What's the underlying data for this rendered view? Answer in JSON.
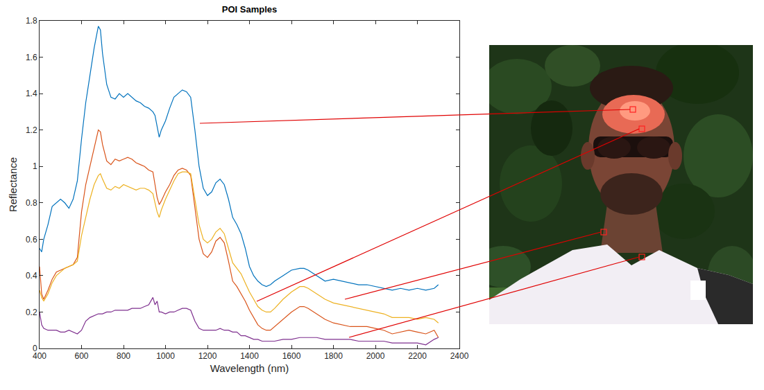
{
  "chart_data": {
    "type": "line",
    "title": "POI Samples",
    "xlabel": "Wavelength (nm)",
    "ylabel": "Reflectance",
    "xlim": [
      400,
      2400
    ],
    "xticks": [
      400,
      600,
      800,
      1000,
      1200,
      1400,
      1600,
      1800,
      2000,
      2200,
      2400
    ],
    "ylim": [
      0,
      1.8
    ],
    "yticks": [
      0,
      0.2,
      0.4,
      0.6,
      0.8,
      1,
      1.2,
      1.4,
      1.6,
      1.8
    ],
    "grid": false,
    "x": [
      400,
      410,
      420,
      440,
      460,
      480,
      500,
      520,
      540,
      560,
      580,
      600,
      620,
      640,
      660,
      680,
      690,
      700,
      720,
      740,
      760,
      780,
      800,
      820,
      840,
      860,
      880,
      900,
      920,
      940,
      950,
      960,
      970,
      980,
      1000,
      1020,
      1040,
      1060,
      1080,
      1100,
      1120,
      1140,
      1160,
      1180,
      1200,
      1220,
      1240,
      1260,
      1280,
      1300,
      1320,
      1340,
      1360,
      1380,
      1400,
      1420,
      1440,
      1460,
      1480,
      1500,
      1520,
      1560,
      1600,
      1640,
      1660,
      1680,
      1720,
      1760,
      1800,
      1840,
      1880,
      1920,
      1960,
      2000,
      2040,
      2080,
      2120,
      2160,
      2200,
      2240,
      2280,
      2300
    ],
    "series": [
      {
        "color": "#0072BD",
        "values": [
          0.55,
          0.53,
          0.6,
          0.68,
          0.78,
          0.8,
          0.82,
          0.8,
          0.77,
          0.82,
          0.92,
          1.15,
          1.35,
          1.5,
          1.65,
          1.77,
          1.75,
          1.62,
          1.45,
          1.38,
          1.37,
          1.4,
          1.38,
          1.4,
          1.38,
          1.36,
          1.35,
          1.33,
          1.32,
          1.3,
          1.28,
          1.22,
          1.16,
          1.2,
          1.25,
          1.32,
          1.38,
          1.4,
          1.42,
          1.41,
          1.38,
          1.2,
          1.0,
          0.88,
          0.84,
          0.86,
          0.91,
          0.93,
          0.9,
          0.82,
          0.72,
          0.68,
          0.63,
          0.55,
          0.45,
          0.4,
          0.37,
          0.35,
          0.34,
          0.35,
          0.37,
          0.4,
          0.43,
          0.44,
          0.44,
          0.43,
          0.4,
          0.37,
          0.38,
          0.37,
          0.36,
          0.35,
          0.35,
          0.34,
          0.33,
          0.32,
          0.33,
          0.32,
          0.33,
          0.32,
          0.33,
          0.35
        ]
      },
      {
        "color": "#D95319",
        "values": [
          0.45,
          0.3,
          0.27,
          0.32,
          0.38,
          0.42,
          0.43,
          0.44,
          0.45,
          0.46,
          0.5,
          0.75,
          0.9,
          1.0,
          1.1,
          1.2,
          1.19,
          1.12,
          1.03,
          1.01,
          1.04,
          1.03,
          1.04,
          1.05,
          1.04,
          1.02,
          1.01,
          1.0,
          0.98,
          0.97,
          0.9,
          0.83,
          0.79,
          0.81,
          0.86,
          0.9,
          0.95,
          0.98,
          0.99,
          0.98,
          0.95,
          0.78,
          0.6,
          0.52,
          0.5,
          0.53,
          0.59,
          0.61,
          0.58,
          0.48,
          0.37,
          0.34,
          0.3,
          0.26,
          0.21,
          0.17,
          0.13,
          0.11,
          0.1,
          0.1,
          0.12,
          0.16,
          0.2,
          0.23,
          0.23,
          0.22,
          0.19,
          0.16,
          0.14,
          0.13,
          0.12,
          0.12,
          0.12,
          0.11,
          0.1,
          0.08,
          0.09,
          0.1,
          0.09,
          0.08,
          0.1,
          0.06
        ]
      },
      {
        "color": "#EDB120",
        "values": [
          0.32,
          0.28,
          0.26,
          0.3,
          0.36,
          0.4,
          0.42,
          0.44,
          0.45,
          0.46,
          0.48,
          0.62,
          0.72,
          0.82,
          0.9,
          0.95,
          0.96,
          0.93,
          0.88,
          0.87,
          0.89,
          0.88,
          0.9,
          0.89,
          0.88,
          0.87,
          0.88,
          0.88,
          0.87,
          0.85,
          0.8,
          0.75,
          0.72,
          0.76,
          0.82,
          0.87,
          0.92,
          0.96,
          0.97,
          0.97,
          0.96,
          0.82,
          0.68,
          0.6,
          0.58,
          0.6,
          0.64,
          0.66,
          0.63,
          0.55,
          0.47,
          0.44,
          0.41,
          0.36,
          0.31,
          0.27,
          0.23,
          0.21,
          0.2,
          0.2,
          0.22,
          0.27,
          0.31,
          0.34,
          0.34,
          0.33,
          0.3,
          0.27,
          0.25,
          0.24,
          0.23,
          0.22,
          0.21,
          0.2,
          0.19,
          0.17,
          0.17,
          0.17,
          0.16,
          0.17,
          0.16,
          0.14
        ]
      },
      {
        "color": "#7E2F8E",
        "values": [
          0.2,
          0.13,
          0.11,
          0.1,
          0.1,
          0.1,
          0.09,
          0.09,
          0.1,
          0.09,
          0.08,
          0.1,
          0.15,
          0.17,
          0.18,
          0.19,
          0.19,
          0.19,
          0.2,
          0.2,
          0.21,
          0.21,
          0.21,
          0.21,
          0.22,
          0.22,
          0.22,
          0.23,
          0.24,
          0.28,
          0.24,
          0.26,
          0.2,
          0.2,
          0.19,
          0.2,
          0.2,
          0.21,
          0.22,
          0.22,
          0.21,
          0.15,
          0.11,
          0.1,
          0.1,
          0.1,
          0.1,
          0.11,
          0.1,
          0.1,
          0.09,
          0.09,
          0.07,
          0.07,
          0.06,
          0.05,
          0.05,
          0.04,
          0.04,
          0.04,
          0.04,
          0.05,
          0.05,
          0.06,
          0.06,
          0.06,
          0.06,
          0.05,
          0.05,
          0.05,
          0.05,
          0.04,
          0.04,
          0.04,
          0.04,
          0.03,
          0.03,
          0.03,
          0.03,
          0.02,
          0.05,
          0.06
        ]
      }
    ]
  }
}
